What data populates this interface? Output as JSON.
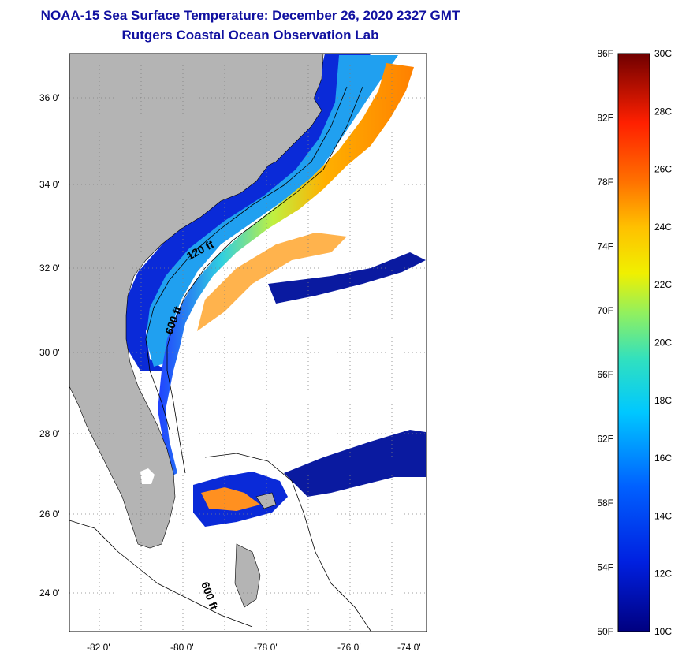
{
  "header": {
    "title": "NOAA-15 Sea Surface Temperature:  December 26, 2020 2327 GMT",
    "subtitle": "Rutgers Coastal Ocean Observation Lab"
  },
  "map": {
    "lat_labels": [
      "36 0'",
      "34 0'",
      "32 0'",
      "30 0'",
      "28 0'",
      "26 0'",
      "24 0'"
    ],
    "lon_labels": [
      "-82 0'",
      "-80 0'",
      "-78 0'",
      "-76 0'",
      "-74 0'"
    ],
    "contours": [
      "120 ft",
      "600 ft",
      "600 ft"
    ],
    "colors": {
      "land": "#b4b4b4",
      "ocean": "#ffffff",
      "border": "#000000"
    }
  },
  "colorbar": {
    "f_labels": [
      "86F",
      "82F",
      "78F",
      "74F",
      "70F",
      "66F",
      "62F",
      "58F",
      "54F",
      "50F"
    ],
    "c_labels": [
      "30C",
      "28C",
      "26C",
      "24C",
      "22C",
      "20C",
      "18C",
      "16C",
      "14C",
      "12C",
      "10C"
    ],
    "colors": [
      "#000090",
      "#0040ff",
      "#00c0ff",
      "#40e0a0",
      "#c0f040",
      "#ffff00",
      "#ffb000",
      "#ff6000",
      "#e00000",
      "#700000"
    ]
  }
}
